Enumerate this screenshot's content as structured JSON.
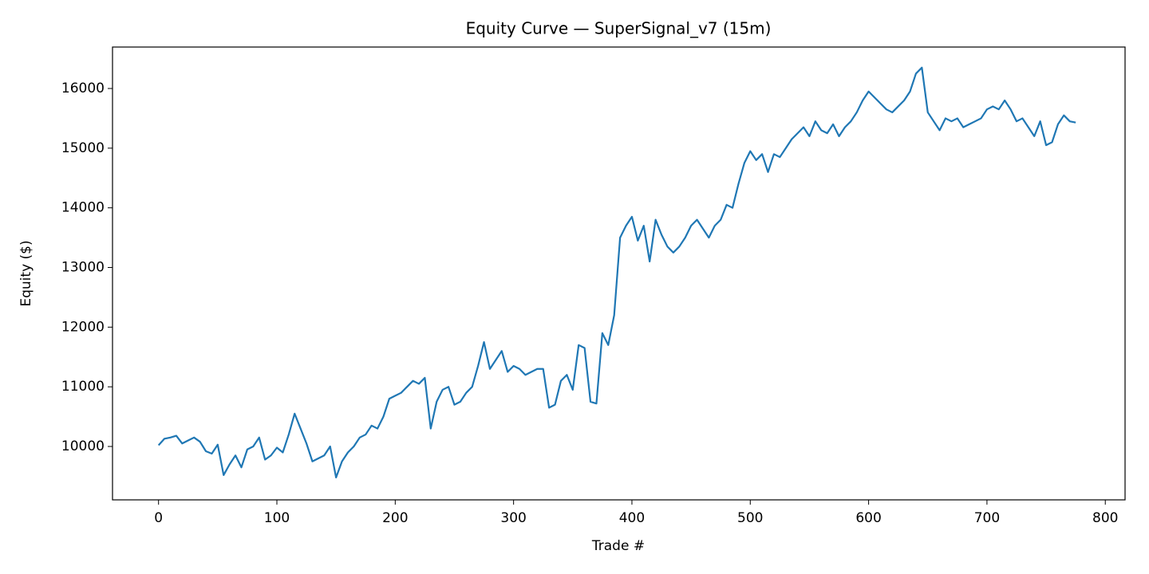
{
  "chart_data": {
    "type": "line",
    "title": "Equity Curve — SuperSignal_v7 (15m)",
    "x_label": "Trade #",
    "y_label": "Equity ($)",
    "x": [
      0,
      5,
      10,
      15,
      20,
      25,
      30,
      35,
      40,
      45,
      50,
      55,
      60,
      65,
      70,
      75,
      80,
      85,
      90,
      95,
      100,
      105,
      110,
      115,
      120,
      125,
      130,
      135,
      140,
      145,
      150,
      155,
      160,
      165,
      170,
      175,
      180,
      185,
      190,
      195,
      200,
      205,
      210,
      215,
      220,
      225,
      230,
      235,
      240,
      245,
      250,
      255,
      260,
      265,
      270,
      275,
      280,
      285,
      290,
      295,
      300,
      305,
      310,
      315,
      320,
      325,
      330,
      335,
      340,
      345,
      350,
      355,
      360,
      365,
      370,
      375,
      380,
      385,
      390,
      395,
      400,
      405,
      410,
      415,
      420,
      425,
      430,
      435,
      440,
      445,
      450,
      455,
      460,
      465,
      470,
      475,
      480,
      485,
      490,
      495,
      500,
      505,
      510,
      515,
      520,
      525,
      530,
      535,
      540,
      545,
      550,
      555,
      560,
      565,
      570,
      575,
      580,
      585,
      590,
      595,
      600,
      605,
      610,
      615,
      620,
      625,
      630,
      635,
      640,
      645,
      650,
      655,
      660,
      665,
      670,
      675,
      680,
      685,
      690,
      695,
      700,
      705,
      710,
      715,
      720,
      725,
      730,
      735,
      740,
      745,
      750,
      755,
      760,
      765,
      770,
      775
    ],
    "series": [
      {
        "name": "Equity",
        "color": "#1f77b4",
        "values": [
          10020,
          10130,
          10150,
          10180,
          10050,
          10100,
          10150,
          10080,
          9920,
          9880,
          10030,
          9520,
          9700,
          9850,
          9650,
          9950,
          10000,
          10150,
          9780,
          9850,
          9980,
          9900,
          10200,
          10550,
          10300,
          10050,
          9750,
          9800,
          9850,
          10000,
          9480,
          9750,
          9900,
          10000,
          10150,
          10200,
          10350,
          10300,
          10500,
          10800,
          10850,
          10900,
          11000,
          11100,
          11050,
          11150,
          10300,
          10750,
          10950,
          11000,
          10700,
          10750,
          10900,
          11000,
          11350,
          11750,
          11300,
          11450,
          11600,
          11250,
          11350,
          11300,
          11200,
          11250,
          11300,
          11300,
          10650,
          10700,
          11100,
          11200,
          10950,
          11700,
          11650,
          10750,
          10720,
          11900,
          11700,
          12200,
          13500,
          13700,
          13850,
          13450,
          13700,
          13100,
          13800,
          13550,
          13350,
          13250,
          13350,
          13500,
          13700,
          13800,
          13650,
          13500,
          13700,
          13800,
          14050,
          14000,
          14400,
          14750,
          14950,
          14800,
          14900,
          14600,
          14900,
          14850,
          15000,
          15150,
          15250,
          15350,
          15200,
          15450,
          15300,
          15250,
          15400,
          15200,
          15350,
          15450,
          15600,
          15800,
          15950,
          15850,
          15750,
          15650,
          15600,
          15700,
          15800,
          15950,
          16250,
          16350,
          15600,
          15450,
          15300,
          15500,
          15450,
          15500,
          15350,
          15400,
          15450,
          15500,
          15650,
          15700,
          15650,
          15800,
          15650,
          15450,
          15500,
          15350,
          15200,
          15450,
          15050,
          15100,
          15400,
          15550,
          15450,
          15430
        ]
      }
    ],
    "xlim": [
      -38.9,
      816.7
    ],
    "xticks": [
      0,
      100,
      200,
      300,
      400,
      500,
      600,
      700,
      800
    ],
    "ylim": [
      9105,
      16695
    ],
    "yticks": [
      10000,
      11000,
      12000,
      13000,
      14000,
      15000,
      16000
    ]
  }
}
